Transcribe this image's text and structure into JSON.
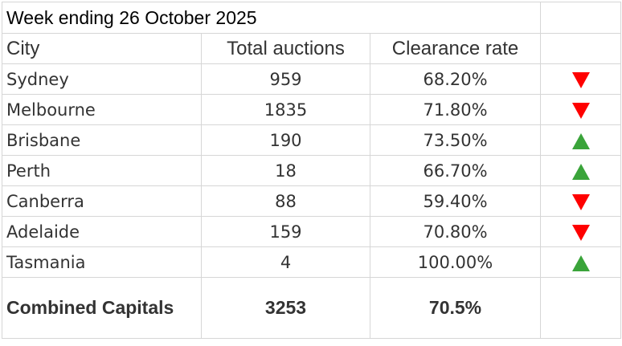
{
  "title": "Week ending 26 October 2025",
  "headers": {
    "city": "City",
    "total_auctions": "Total auctions",
    "clearance_rate": "Clearance rate"
  },
  "rows": [
    {
      "city": "Sydney",
      "total_auctions": "959",
      "clearance_rate": "68.20%",
      "trend": "down-arrow-icon"
    },
    {
      "city": "Melbourne",
      "total_auctions": "1835",
      "clearance_rate": "71.80%",
      "trend": "down-arrow-icon"
    },
    {
      "city": "Brisbane",
      "total_auctions": "190",
      "clearance_rate": "73.50%",
      "trend": "up-arrow-icon"
    },
    {
      "city": "Perth",
      "total_auctions": "18",
      "clearance_rate": "66.70%",
      "trend": "up-arrow-icon"
    },
    {
      "city": "Canberra",
      "total_auctions": "88",
      "clearance_rate": "59.40%",
      "trend": "down-arrow-icon"
    },
    {
      "city": "Adelaide",
      "total_auctions": "159",
      "clearance_rate": "70.80%",
      "trend": "down-arrow-icon"
    },
    {
      "city": "Tasmania",
      "total_auctions": "4",
      "clearance_rate": "100.00%",
      "trend": "up-arrow-icon"
    }
  ],
  "total": {
    "city": "Combined Capitals",
    "total_auctions": "3253",
    "clearance_rate": "70.5%"
  },
  "colors": {
    "up": "#3aa43a",
    "down": "#ff0000",
    "border": "#d6d6d6",
    "text": "#333333"
  }
}
